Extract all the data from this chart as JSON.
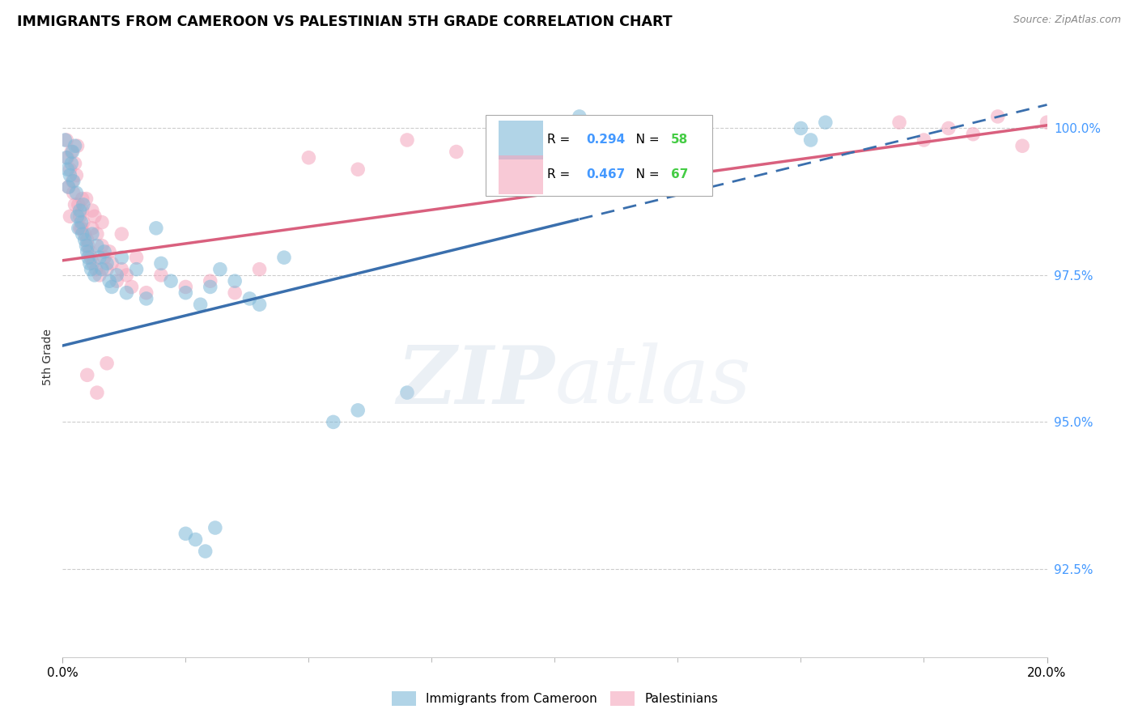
{
  "title": "IMMIGRANTS FROM CAMEROON VS PALESTINIAN 5TH GRADE CORRELATION CHART",
  "source": "Source: ZipAtlas.com",
  "ylabel": "5th Grade",
  "ytick_values": [
    100.0,
    97.5,
    95.0,
    92.5
  ],
  "xmin": 0.0,
  "xmax": 20.0,
  "ymin": 91.0,
  "ymax": 101.2,
  "blue_R": 0.294,
  "blue_N": 58,
  "pink_R": 0.467,
  "pink_N": 67,
  "blue_color": "#7eb8d8",
  "pink_color": "#f4a5bc",
  "blue_line_color": "#3a6fad",
  "pink_line_color": "#d9607e",
  "legend_R_color": "#4499ff",
  "legend_N_color": "#44cc44",
  "blue_line_x0": 0.0,
  "blue_line_y0": 96.3,
  "blue_line_x1": 20.0,
  "blue_line_y1": 100.4,
  "blue_solid_end": 10.5,
  "pink_line_x0": 0.0,
  "pink_line_y0": 97.75,
  "pink_line_x1": 20.0,
  "pink_line_y1": 100.05,
  "watermark_text": "ZIPatlas",
  "watermark_zip_color": "#c8d8e8",
  "watermark_atlas_color": "#d0dce8"
}
